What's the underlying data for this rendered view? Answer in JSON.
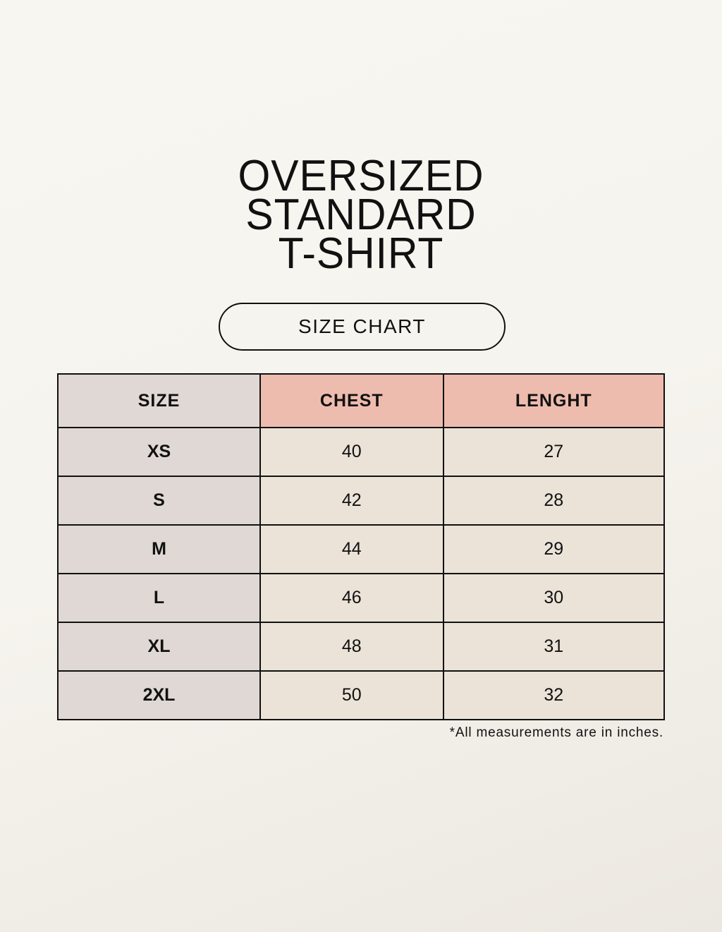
{
  "title": [
    "OVERSIZED",
    "STANDARD",
    "T-SHIRT"
  ],
  "subtitle": "SIZE CHART",
  "table": {
    "headers": [
      "SIZE",
      "CHEST",
      "LENGHT"
    ],
    "rows": [
      [
        "XS",
        "40",
        "27"
      ],
      [
        "S",
        "42",
        "28"
      ],
      [
        "M",
        "44",
        "29"
      ],
      [
        "L",
        "46",
        "30"
      ],
      [
        "XL",
        "48",
        "31"
      ],
      [
        "2XL",
        "50",
        "32"
      ]
    ]
  },
  "note": "*All measurements are in inches.",
  "colors": {
    "size_column": "#e0d8d4",
    "header_accent": "#eebcae",
    "cells": "#ebe3d8"
  }
}
